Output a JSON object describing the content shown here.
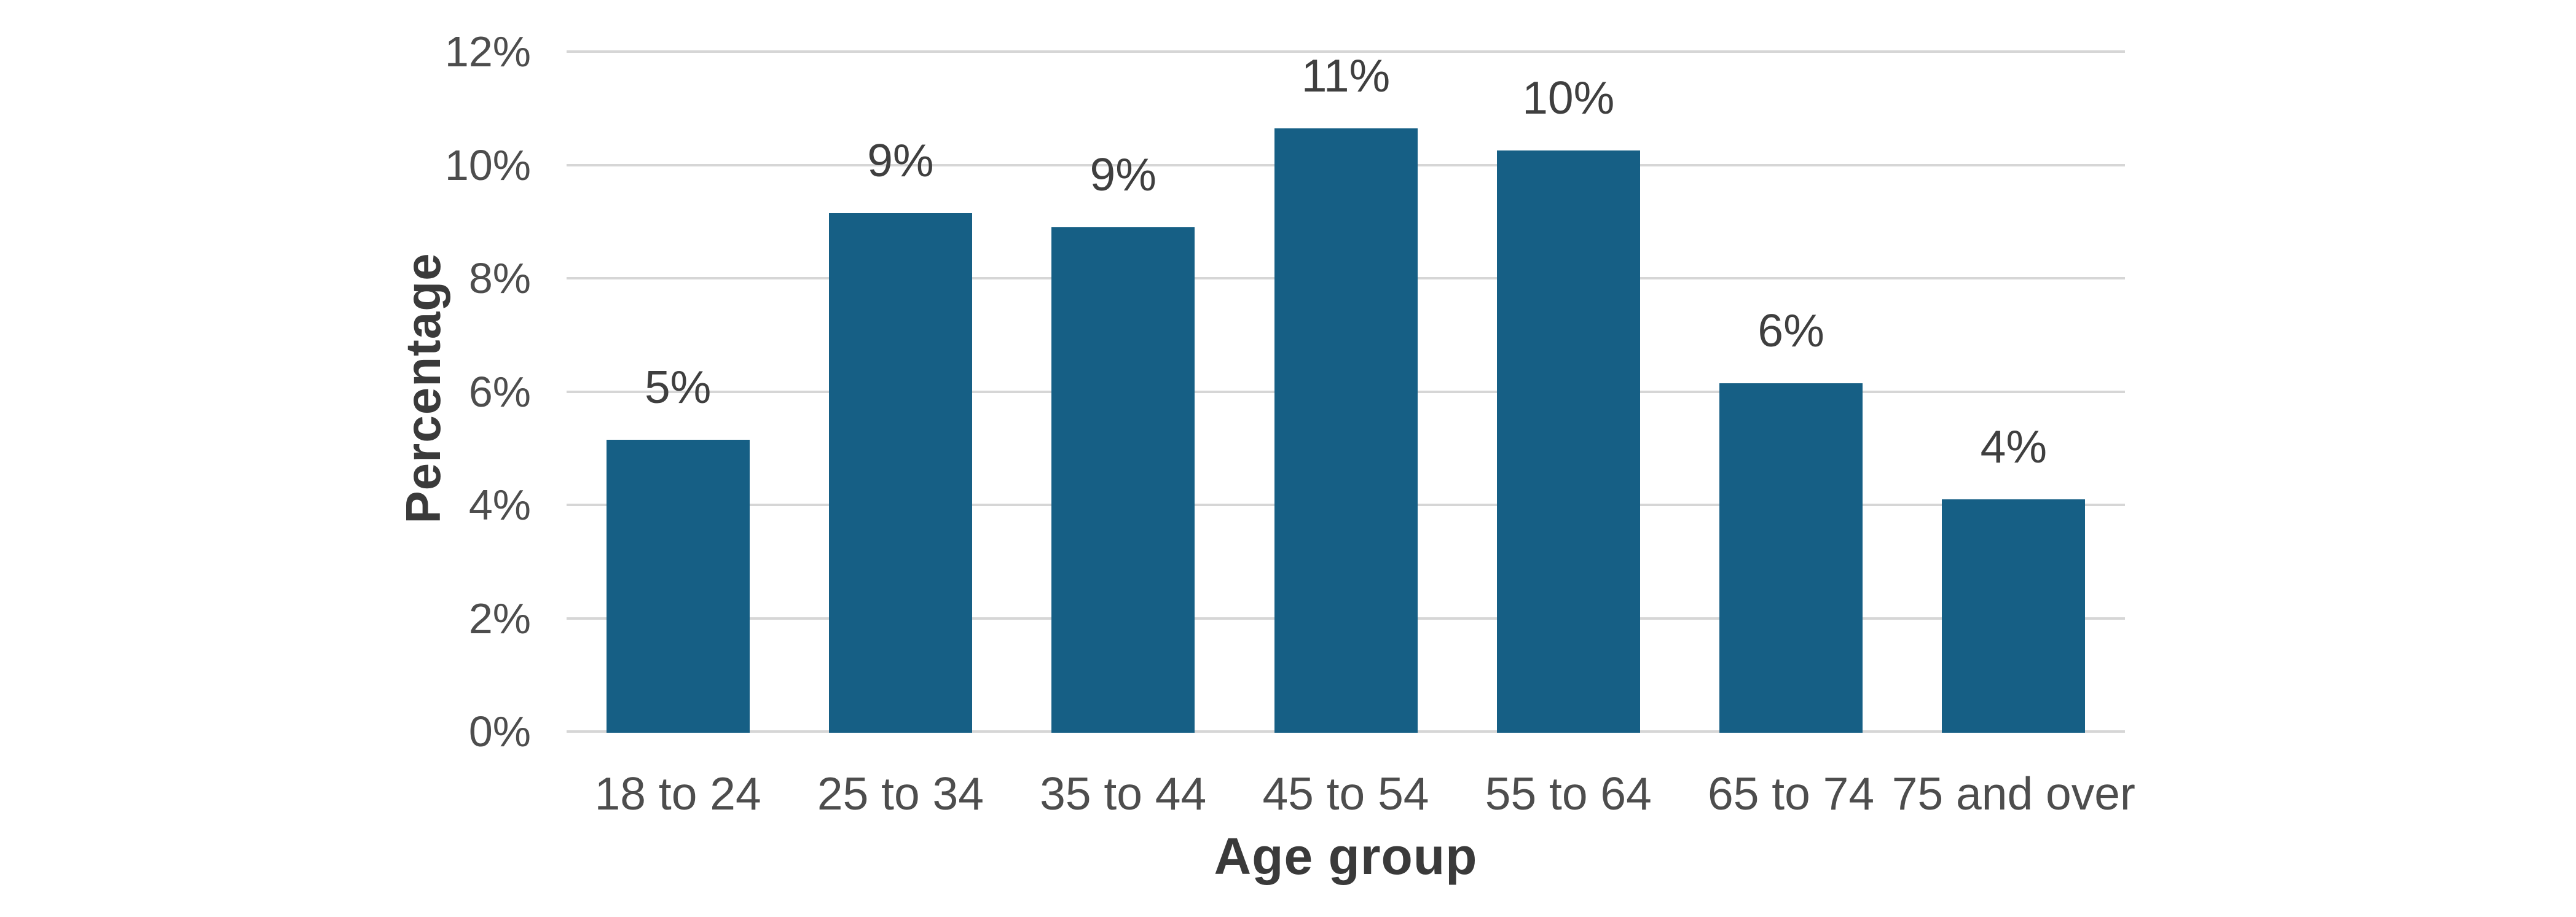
{
  "chart_data": {
    "type": "bar",
    "title": "",
    "xlabel": "Age group",
    "ylabel": "Percentage",
    "categories": [
      "18 to 24",
      "25 to 34",
      "35 to 44",
      "45 to 54",
      "55 to 64",
      "65 to 74",
      "75 and over"
    ],
    "values": [
      5.15,
      9.15,
      8.9,
      10.65,
      10.25,
      6.15,
      4.1
    ],
    "value_labels": [
      "5%",
      "9%",
      "9%",
      "11%",
      "10%",
      "6%",
      "4%"
    ],
    "ylim": [
      0,
      12
    ],
    "yticks": [
      {
        "value": 0,
        "label": "0%"
      },
      {
        "value": 2,
        "label": "2%"
      },
      {
        "value": 4,
        "label": "4%"
      },
      {
        "value": 6,
        "label": "6%"
      },
      {
        "value": 8,
        "label": "8%"
      },
      {
        "value": 10,
        "label": "10%"
      },
      {
        "value": 12,
        "label": "12%"
      }
    ],
    "grid": "horizontal",
    "legend": "none",
    "colors": {
      "bar": "#165F85",
      "gridline": "#D6D6D6",
      "tick_label": "#4D4D4D",
      "value_label": "#3F3F3F",
      "axis_title": "#3A3A3A",
      "background": "#FFFFFF"
    }
  }
}
